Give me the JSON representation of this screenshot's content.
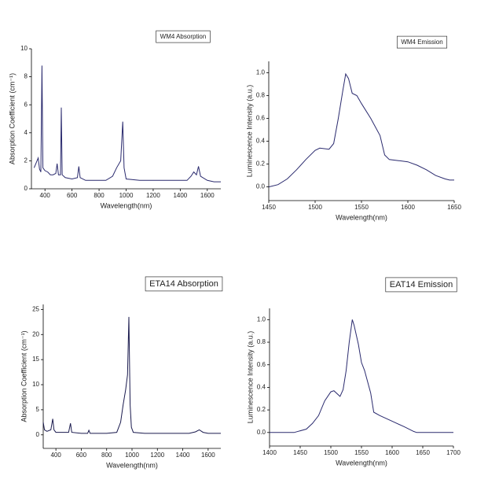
{
  "chart_data": [
    {
      "type": "line",
      "title": "WM4 Absorption",
      "x_label": "Wavelength(nm)",
      "y_label": "Absorption Coefficient (cm⁻¹)",
      "color": "#2a2a6e",
      "x": [
        320,
        350,
        360,
        370,
        378,
        385,
        400,
        420,
        440,
        460,
        480,
        490,
        500,
        515,
        521,
        527,
        550,
        600,
        640,
        650,
        660,
        700,
        800,
        850,
        900,
        930,
        960,
        975,
        985,
        1000,
        1100,
        1200,
        1300,
        1400,
        1450,
        1480,
        1500,
        1520,
        1535,
        1550,
        1600,
        1650,
        1700
      ],
      "values": [
        1.5,
        2.2,
        1.4,
        1.2,
        8.8,
        1.5,
        1.3,
        1.2,
        1.0,
        1.0,
        1.1,
        1.8,
        1.0,
        1.0,
        5.8,
        1.0,
        0.8,
        0.7,
        0.8,
        1.6,
        0.8,
        0.6,
        0.6,
        0.6,
        0.9,
        1.5,
        2.0,
        4.8,
        1.5,
        0.7,
        0.6,
        0.6,
        0.6,
        0.6,
        0.6,
        0.9,
        1.2,
        1.0,
        1.6,
        0.9,
        0.6,
        0.5,
        0.5
      ],
      "xlim": [
        300,
        1700
      ],
      "xticks": [
        400,
        600,
        800,
        1000,
        1200,
        1400,
        1600
      ],
      "ylim": [
        0,
        10
      ],
      "yticks": [
        0,
        2,
        4,
        6,
        8,
        10
      ]
    },
    {
      "type": "line",
      "title": "WM4 Emission",
      "x_label": "Wavelength(nm)",
      "y_label": "Luminescence Intensity (a.u.)",
      "color": "#2a2a6e",
      "x": [
        1450,
        1460,
        1470,
        1480,
        1490,
        1500,
        1505,
        1515,
        1520,
        1525,
        1530,
        1533,
        1536,
        1540,
        1545,
        1550,
        1560,
        1570,
        1575,
        1580,
        1590,
        1600,
        1610,
        1620,
        1630,
        1640,
        1645,
        1650
      ],
      "values": [
        0.0,
        0.02,
        0.07,
        0.15,
        0.24,
        0.32,
        0.34,
        0.33,
        0.38,
        0.6,
        0.85,
        0.99,
        0.95,
        0.82,
        0.8,
        0.73,
        0.6,
        0.45,
        0.28,
        0.24,
        0.23,
        0.22,
        0.19,
        0.15,
        0.1,
        0.07,
        0.06,
        0.06
      ],
      "xlim": [
        1450,
        1650
      ],
      "xticks": [
        1450,
        1500,
        1550,
        1600,
        1650
      ],
      "ylim": [
        -0.12,
        1.1
      ],
      "yticks": [
        {
          "value": 0,
          "label": "0.0"
        },
        0.2,
        0.4,
        0.6,
        0.8,
        {
          "value": 1,
          "label": "1.0"
        }
      ]
    },
    {
      "type": "line",
      "title": "ETA14 Absorption",
      "x_label": "Wavelength(nm)",
      "y_label": "Absorption Coefficient (cm⁻¹)",
      "color": "#1a1a4e",
      "x": [
        300,
        310,
        330,
        360,
        375,
        385,
        400,
        500,
        515,
        525,
        600,
        650,
        660,
        670,
        800,
        880,
        910,
        930,
        950,
        965,
        975,
        985,
        995,
        1010,
        1100,
        1300,
        1450,
        1500,
        1530,
        1560,
        1600,
        1700
      ],
      "values": [
        2.5,
        1.0,
        0.7,
        1.0,
        3.2,
        1.0,
        0.5,
        0.5,
        2.3,
        0.5,
        0.3,
        0.3,
        0.9,
        0.3,
        0.3,
        0.5,
        2.5,
        6,
        9,
        12,
        23.5,
        6,
        1.5,
        0.5,
        0.3,
        0.3,
        0.3,
        0.6,
        1.0,
        0.5,
        0.3,
        0.3
      ],
      "xlim": [
        300,
        1700
      ],
      "xticks": [
        400,
        600,
        800,
        1000,
        1200,
        1400,
        1600
      ],
      "ylim": [
        -2.7,
        26
      ],
      "yticks": [
        0,
        5,
        10,
        15,
        20,
        25
      ]
    },
    {
      "type": "line",
      "title": "EAT14 Emission",
      "x_label": "Wavelength(nm)",
      "y_label": "Luminescence Intensity (a.u.)",
      "color": "#2a2a6e",
      "x": [
        1400,
        1440,
        1460,
        1470,
        1480,
        1490,
        1500,
        1505,
        1515,
        1520,
        1525,
        1530,
        1535,
        1538,
        1545,
        1550,
        1555,
        1565,
        1570,
        1580,
        1600,
        1620,
        1635,
        1640,
        1700
      ],
      "values": [
        0,
        0,
        0.03,
        0.08,
        0.15,
        0.28,
        0.36,
        0.37,
        0.32,
        0.38,
        0.55,
        0.8,
        1.0,
        0.95,
        0.78,
        0.62,
        0.55,
        0.35,
        0.18,
        0.15,
        0.1,
        0.05,
        0.01,
        0,
        0
      ],
      "xlim": [
        1400,
        1700
      ],
      "xticks": [
        1400,
        1450,
        1500,
        1550,
        1600,
        1650,
        1700
      ],
      "ylim": [
        -0.12,
        1.1
      ],
      "yticks": [
        {
          "value": 0,
          "label": "0.0"
        },
        0.2,
        0.4,
        0.6,
        0.8,
        {
          "value": 1,
          "label": "1.0"
        }
      ]
    }
  ]
}
